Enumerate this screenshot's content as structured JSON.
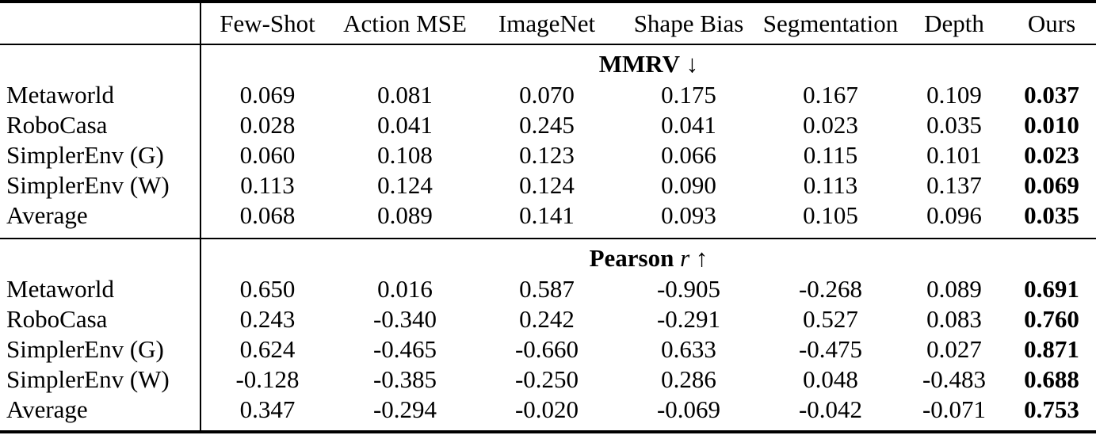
{
  "table": {
    "columns": {
      "label": "",
      "headers": [
        "Few-Shot",
        "Action MSE",
        "ImageNet",
        "Shape Bias",
        "Segmentation",
        "Depth",
        "Ours"
      ]
    },
    "colors": {
      "text": "#000000",
      "background": "#ffffff",
      "rule": "#000000"
    },
    "sections": [
      {
        "title_parts": [
          {
            "text": "MMRV",
            "style": "bold"
          },
          {
            "text": "↓",
            "style": "normal"
          }
        ],
        "rows": [
          {
            "label": "Metaworld",
            "values": [
              "0.069",
              "0.081",
              "0.070",
              "0.175",
              "0.167",
              "0.109",
              "0.037"
            ]
          },
          {
            "label": "RoboCasa",
            "values": [
              "0.028",
              "0.041",
              "0.245",
              "0.041",
              "0.023",
              "0.035",
              "0.010"
            ]
          },
          {
            "label": "SimplerEnv (G)",
            "values": [
              "0.060",
              "0.108",
              "0.123",
              "0.066",
              "0.115",
              "0.101",
              "0.023"
            ]
          },
          {
            "label": "SimplerEnv (W)",
            "values": [
              "0.113",
              "0.124",
              "0.124",
              "0.090",
              "0.113",
              "0.137",
              "0.069"
            ]
          },
          {
            "label": "Average",
            "values": [
              "0.068",
              "0.089",
              "0.141",
              "0.093",
              "0.105",
              "0.096",
              "0.035"
            ]
          }
        ]
      },
      {
        "title_parts": [
          {
            "text": "Pearson",
            "style": "bold"
          },
          {
            "text": "r",
            "style": "italic"
          },
          {
            "text": "↑",
            "style": "normal"
          }
        ],
        "rows": [
          {
            "label": "Metaworld",
            "values": [
              "0.650",
              "0.016",
              "0.587",
              "-0.905",
              "-0.268",
              "0.089",
              "0.691"
            ]
          },
          {
            "label": "RoboCasa",
            "values": [
              "0.243",
              "-0.340",
              "0.242",
              "-0.291",
              "0.527",
              "0.083",
              "0.760"
            ]
          },
          {
            "label": "SimplerEnv (G)",
            "values": [
              "0.624",
              "-0.465",
              "-0.660",
              "0.633",
              "-0.475",
              "0.027",
              "0.871"
            ]
          },
          {
            "label": "SimplerEnv (W)",
            "values": [
              "-0.128",
              "-0.385",
              "-0.250",
              "0.286",
              "0.048",
              "-0.483",
              "0.688"
            ]
          },
          {
            "label": "Average",
            "values": [
              "0.347",
              "-0.294",
              "-0.020",
              "-0.069",
              "-0.042",
              "-0.071",
              "0.753"
            ]
          }
        ]
      }
    ]
  }
}
